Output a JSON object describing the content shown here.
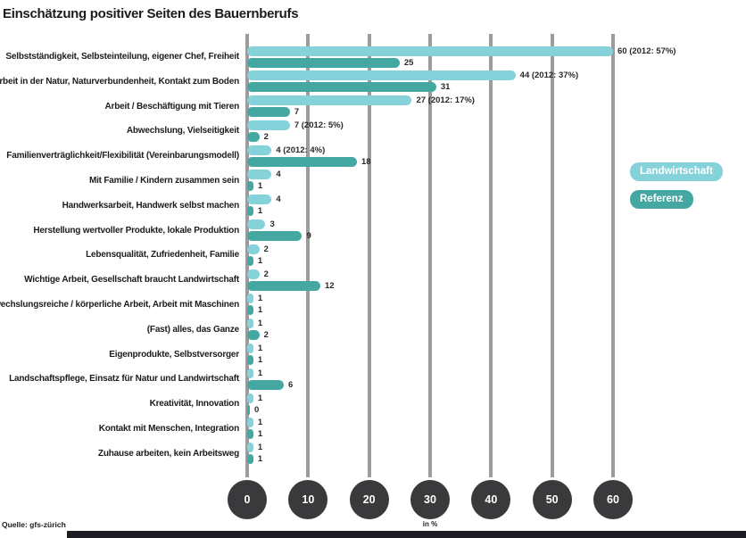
{
  "title": "Einschätzung positiver Seiten des Bauernberufs",
  "source": "Quelle: gfs-zürich",
  "axis": {
    "ticks": [
      0,
      10,
      20,
      30,
      40,
      50,
      60
    ],
    "unit_label": "in %"
  },
  "legend": [
    {
      "label": "Landwirtschaft",
      "color": "#85d2db"
    },
    {
      "label": "Referenz",
      "color": "#45a7a2"
    }
  ],
  "chart_data": {
    "type": "bar",
    "orientation": "horizontal",
    "title": "Einschätzung positiver Seiten des Bauernberufs",
    "xlabel": "in %",
    "xlim": [
      0,
      63
    ],
    "grid": "vertical",
    "legend_position": "right",
    "categories": [
      "Selbstständigkeit, Selbsteinteilung, eigener Chef, Freiheit",
      "Arbeit in der Natur, Naturverbundenheit, Kontakt zum Boden",
      "Arbeit / Beschäftigung mit Tieren",
      "Abwechslung, Vielseitigkeit",
      "Familienverträglichkeit/Flexibilität (Vereinbarungsmodell)",
      "Mit Familie / Kindern zusammen sein",
      "Handwerksarbeit, Handwerk selbst machen",
      "Herstellung wertvoller Produkte, lokale Produktion",
      "Lebensqualität, Zufriedenheit, Familie",
      "Wichtige Arbeit, Gesellschaft braucht Landwirtschaft",
      "Abwechslungsreiche / körperliche Arbeit, Arbeit mit Maschinen",
      "(Fast) alles, das Ganze",
      "Eigenprodukte, Selbstversorger",
      "Landschaftspflege, Einsatz für Natur und Landwirtschaft",
      "Kreativität, Innovation",
      "Kontakt mit Menschen, Integration",
      "Zuhause arbeiten, kein Arbeitsweg"
    ],
    "series": [
      {
        "name": "Landwirtschaft",
        "color": "#85d2db",
        "values": [
          60,
          44,
          27,
          7,
          4,
          4,
          4,
          3,
          2,
          2,
          1,
          1,
          1,
          1,
          1,
          1,
          1
        ],
        "value_labels": [
          "60 (2012: 57%)",
          "44 (2012: 37%)",
          "27 (2012: 17%)",
          "7 (2012: 5%)",
          "4 (2012: 4%)",
          "4",
          "4",
          "3",
          "2",
          "2",
          "1",
          "1",
          "1",
          "1",
          "1",
          "1",
          "1"
        ]
      },
      {
        "name": "Referenz",
        "color": "#45a7a2",
        "values": [
          25,
          31,
          7,
          2,
          18,
          1,
          1,
          9,
          1,
          12,
          1,
          2,
          1,
          6,
          0,
          1,
          1
        ],
        "value_labels": [
          "25",
          "31",
          "7",
          "2",
          "18",
          "1",
          "1",
          "9",
          "1",
          "12",
          "1",
          "2",
          "1",
          "6",
          "0",
          "1",
          "1"
        ]
      }
    ]
  }
}
